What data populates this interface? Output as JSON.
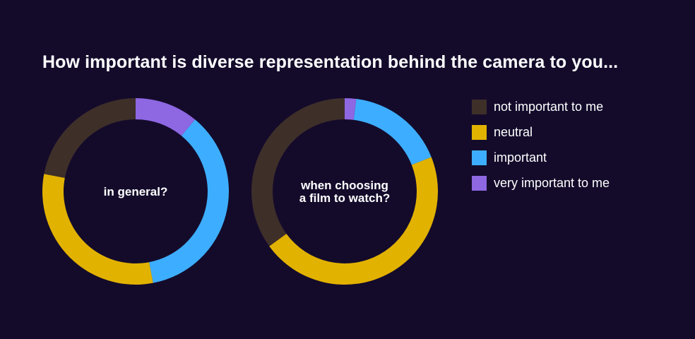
{
  "chart_data": {
    "type": "pie",
    "title": "How important is diverse representation behind the camera to you...",
    "categories": [
      "not important to me",
      "neutral",
      "important",
      "very important to me"
    ],
    "colors": [
      "#3e2f29",
      "#e2b200",
      "#3daeff",
      "#8e67e2"
    ],
    "legend_position": "right",
    "charts": [
      {
        "label_lines": [
          "in general?"
        ],
        "values": [
          22,
          31,
          36,
          11
        ]
      },
      {
        "label_lines": [
          "when choosing",
          "a film to watch?"
        ],
        "values": [
          35,
          46,
          17,
          2
        ]
      }
    ]
  }
}
